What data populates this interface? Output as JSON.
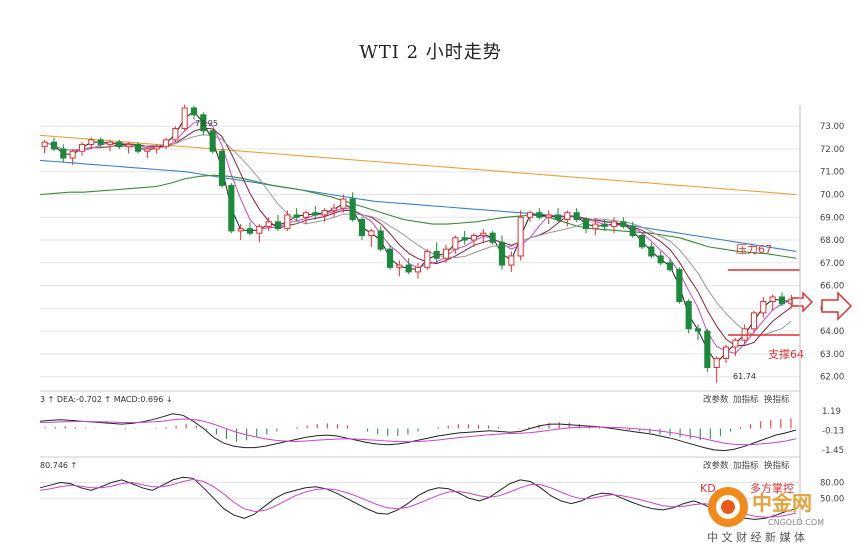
{
  "chart_data": {
    "type": "candlestick",
    "title": "WTI 2 小时走势",
    "y_ticks": [
      73.0,
      72.0,
      71.0,
      70.0,
      69.0,
      68.0,
      67.0,
      66.0,
      65.0,
      64.0,
      63.0,
      62.0
    ],
    "y_ticks_text": [
      "73.00",
      "72.00",
      "71.00",
      "70.00",
      "69.00",
      "68.00",
      "67.00",
      "66.00",
      "65.00",
      "64.00",
      "63.00",
      "62.00"
    ],
    "ylim": [
      61.5,
      73.8
    ],
    "high_marker": "73.95",
    "low_marker": "61.74",
    "candles": [
      [
        72.1,
        72.4,
        71.8,
        72.3
      ],
      [
        72.3,
        72.5,
        71.9,
        72.0
      ],
      [
        72.0,
        72.2,
        71.4,
        71.6
      ],
      [
        71.6,
        72.0,
        71.3,
        71.9
      ],
      [
        71.9,
        72.3,
        71.7,
        72.2
      ],
      [
        72.2,
        72.5,
        72.0,
        72.4
      ],
      [
        72.4,
        72.5,
        72.1,
        72.2
      ],
      [
        72.2,
        72.4,
        71.9,
        72.3
      ],
      [
        72.3,
        72.4,
        72.0,
        72.1
      ],
      [
        72.1,
        72.3,
        71.8,
        72.2
      ],
      [
        72.2,
        72.3,
        71.8,
        71.9
      ],
      [
        71.9,
        72.1,
        71.6,
        72.0
      ],
      [
        72.0,
        72.2,
        71.8,
        72.1
      ],
      [
        72.1,
        72.5,
        72.0,
        72.4
      ],
      [
        72.4,
        73.0,
        72.3,
        72.9
      ],
      [
        72.9,
        73.95,
        72.8,
        73.8
      ],
      [
        73.8,
        73.9,
        73.3,
        73.5
      ],
      [
        73.5,
        73.6,
        72.6,
        72.8
      ],
      [
        72.8,
        72.9,
        71.8,
        71.9
      ],
      [
        71.9,
        72.0,
        70.3,
        70.4
      ],
      [
        70.4,
        70.5,
        68.3,
        68.4
      ],
      [
        68.4,
        68.7,
        68.0,
        68.5
      ],
      [
        68.5,
        68.8,
        68.2,
        68.3
      ],
      [
        68.3,
        68.7,
        67.9,
        68.6
      ],
      [
        68.6,
        69.0,
        68.4,
        68.8
      ],
      [
        68.8,
        69.1,
        68.4,
        68.5
      ],
      [
        68.5,
        69.3,
        68.4,
        69.1
      ],
      [
        69.1,
        69.4,
        68.8,
        69.0
      ],
      [
        69.0,
        69.3,
        68.7,
        69.2
      ],
      [
        69.2,
        69.5,
        68.9,
        69.1
      ],
      [
        69.1,
        69.4,
        68.8,
        69.3
      ],
      [
        69.3,
        69.6,
        69.0,
        69.4
      ],
      [
        69.4,
        70.0,
        69.2,
        69.8
      ],
      [
        69.8,
        70.1,
        68.8,
        68.9
      ],
      [
        68.9,
        69.0,
        68.0,
        68.2
      ],
      [
        68.2,
        68.5,
        67.7,
        68.4
      ],
      [
        68.4,
        68.6,
        67.5,
        67.6
      ],
      [
        67.6,
        67.8,
        66.7,
        66.8
      ],
      [
        66.8,
        67.1,
        66.4,
        66.9
      ],
      [
        66.9,
        67.2,
        66.5,
        66.6
      ],
      [
        66.6,
        67.0,
        66.3,
        66.8
      ],
      [
        66.8,
        67.6,
        66.7,
        67.5
      ],
      [
        67.5,
        67.9,
        67.0,
        67.2
      ],
      [
        67.2,
        67.8,
        67.0,
        67.6
      ],
      [
        67.6,
        68.2,
        67.4,
        68.1
      ],
      [
        68.1,
        68.4,
        67.8,
        68.0
      ],
      [
        68.0,
        68.3,
        67.7,
        68.2
      ],
      [
        68.2,
        68.5,
        67.9,
        68.3
      ],
      [
        68.3,
        68.4,
        67.8,
        67.9
      ],
      [
        67.9,
        68.2,
        66.7,
        66.9
      ],
      [
        66.9,
        67.5,
        66.6,
        67.3
      ],
      [
        67.3,
        69.3,
        67.1,
        69.0
      ],
      [
        69.0,
        69.3,
        68.8,
        69.2
      ],
      [
        69.2,
        69.4,
        68.9,
        69.0
      ],
      [
        69.0,
        69.3,
        68.7,
        69.1
      ],
      [
        69.1,
        69.4,
        68.8,
        68.9
      ],
      [
        68.9,
        69.3,
        68.6,
        69.2
      ],
      [
        69.2,
        69.4,
        68.8,
        68.9
      ],
      [
        68.9,
        69.0,
        68.3,
        68.5
      ],
      [
        68.5,
        68.9,
        68.2,
        68.7
      ],
      [
        68.7,
        68.9,
        68.4,
        68.6
      ],
      [
        68.6,
        69.0,
        68.3,
        68.8
      ],
      [
        68.8,
        69.0,
        68.5,
        68.6
      ],
      [
        68.6,
        68.8,
        68.1,
        68.2
      ],
      [
        68.2,
        68.3,
        67.6,
        67.7
      ],
      [
        67.7,
        67.9,
        67.2,
        67.3
      ],
      [
        67.3,
        67.5,
        66.9,
        67.0
      ],
      [
        67.0,
        67.2,
        66.6,
        66.7
      ],
      [
        66.7,
        66.8,
        65.2,
        65.3
      ],
      [
        65.3,
        65.4,
        63.9,
        64.1
      ],
      [
        64.1,
        64.3,
        63.6,
        64.0
      ],
      [
        64.0,
        64.1,
        62.2,
        62.4
      ],
      [
        62.4,
        62.9,
        61.74,
        62.8
      ],
      [
        62.8,
        63.4,
        62.6,
        63.3
      ],
      [
        63.3,
        63.7,
        62.9,
        63.6
      ],
      [
        63.6,
        64.3,
        63.4,
        64.1
      ],
      [
        64.1,
        64.9,
        63.9,
        64.8
      ],
      [
        64.8,
        65.5,
        64.6,
        65.3
      ],
      [
        65.3,
        65.6,
        64.9,
        65.5
      ],
      [
        65.5,
        65.7,
        65.1,
        65.2
      ],
      [
        65.2,
        65.6,
        65.0,
        65.4
      ]
    ],
    "ma_lines": [
      {
        "color": "#e8a33a",
        "values": [
          72.6,
          72.55,
          72.5,
          72.45,
          72.4,
          72.35,
          72.3,
          72.25,
          72.2,
          72.15,
          72.1,
          72.05,
          72.0,
          71.95,
          71.9,
          71.85,
          71.8,
          71.75,
          71.7,
          71.65,
          71.6,
          71.55,
          71.5,
          71.45,
          71.4,
          71.35,
          71.3,
          71.25,
          71.2,
          71.15,
          71.1,
          71.05,
          71.0,
          70.95,
          70.9,
          70.85,
          70.8,
          70.75,
          70.7,
          70.65,
          70.6,
          70.55,
          70.5,
          70.45,
          70.4,
          70.35,
          70.3,
          70.25,
          70.2,
          70.15,
          70.1,
          70.05,
          70.0
        ]
      },
      {
        "color": "#3c82c8",
        "values": [
          71.5,
          71.45,
          71.4,
          71.35,
          71.3,
          71.25,
          71.2,
          71.15,
          71.1,
          71.05,
          71.0,
          70.9,
          70.8,
          70.7,
          70.6,
          70.5,
          70.4,
          70.3,
          70.2,
          70.1,
          70.0,
          69.9,
          69.8,
          69.7,
          69.65,
          69.6,
          69.55,
          69.5,
          69.45,
          69.4,
          69.35,
          69.3,
          69.25,
          69.2,
          69.15,
          69.1,
          69.05,
          69.0,
          68.9,
          68.8,
          68.7,
          68.6,
          68.5,
          68.4,
          68.3,
          68.2,
          68.1,
          68.0,
          67.9,
          67.8,
          67.7,
          67.6,
          67.5
        ]
      },
      {
        "color": "#3a8a3a",
        "values": [
          70.0,
          70.05,
          70.1,
          70.1,
          70.15,
          70.2,
          70.25,
          70.3,
          70.35,
          70.5,
          70.7,
          70.8,
          70.85,
          70.8,
          70.7,
          70.55,
          70.4,
          70.3,
          70.2,
          70.05,
          69.9,
          69.7,
          69.5,
          69.3,
          69.1,
          68.9,
          68.8,
          68.7,
          68.7,
          68.75,
          68.8,
          68.9,
          69.0,
          69.05,
          69.1,
          69.0,
          68.8,
          68.6,
          68.5,
          68.45,
          68.4,
          68.35,
          68.3,
          68.2,
          68.1,
          67.9,
          67.7,
          67.6,
          67.5,
          67.45,
          67.4,
          67.3,
          67.2
        ]
      }
    ],
    "annotations": {
      "resistance_label": "压力67",
      "resistance_value": 66.9,
      "support_label": "支撑64",
      "support_value": 63.9
    },
    "macd_panel": {
      "header": "3 ↑ DEA:-0.702 ↑ MACD:0.696 ↓",
      "header_dea": "DEA:-0.702",
      "header_macd": "MACD:0.696",
      "y_ticks_text": [
        "1.19",
        "-0.13",
        "-1.45"
      ],
      "y_ticks": [
        1.19,
        -0.13,
        -1.45
      ],
      "ylim": [
        -1.8,
        1.6
      ],
      "histogram": [
        0.1,
        0.12,
        0.15,
        0.1,
        0.05,
        0.02,
        0.0,
        -0.02,
        -0.05,
        -0.03,
        0.02,
        0.05,
        0.1,
        0.2,
        0.3,
        0.2,
        -0.1,
        -0.4,
        -0.7,
        -0.9,
        -0.8,
        -0.6,
        -0.4,
        -0.2,
        0.0,
        0.1,
        0.2,
        0.3,
        0.35,
        0.3,
        0.2,
        0.0,
        -0.2,
        -0.4,
        -0.5,
        -0.5,
        -0.4,
        -0.2,
        0.0,
        0.1,
        0.2,
        0.3,
        0.3,
        0.25,
        0.2,
        0.1,
        0.0,
        -0.05,
        0.1,
        0.25,
        0.4,
        0.45,
        0.4,
        0.3,
        0.2,
        0.15,
        0.1,
        0.0,
        -0.1,
        -0.2,
        -0.3,
        -0.4,
        -0.5,
        -0.6,
        -0.7,
        -0.8,
        -0.7,
        -0.5,
        -0.2,
        0.1,
        0.3,
        0.5,
        0.6,
        0.65,
        0.7
      ],
      "dif": [
        0.5,
        0.55,
        0.6,
        0.55,
        0.5,
        0.45,
        0.4,
        0.35,
        0.3,
        0.35,
        0.45,
        0.6,
        0.8,
        1.0,
        0.9,
        0.5,
        0.0,
        -0.6,
        -1.0,
        -1.2,
        -1.3,
        -1.3,
        -1.2,
        -1.05,
        -0.9,
        -0.75,
        -0.6,
        -0.5,
        -0.45,
        -0.5,
        -0.65,
        -0.8,
        -0.95,
        -1.05,
        -1.1,
        -1.05,
        -0.95,
        -0.8,
        -0.65,
        -0.5,
        -0.4,
        -0.3,
        -0.25,
        -0.2,
        -0.15,
        -0.2,
        -0.25,
        -0.2,
        0.0,
        0.2,
        0.3,
        0.3,
        0.25,
        0.2,
        0.15,
        0.1,
        0.0,
        -0.1,
        -0.2,
        -0.3,
        -0.4,
        -0.55,
        -0.7,
        -0.9,
        -1.1,
        -1.3,
        -1.45,
        -1.5,
        -1.4,
        -1.2,
        -0.95,
        -0.7,
        -0.45,
        -0.3,
        -0.1
      ],
      "dea": [
        0.4,
        0.42,
        0.45,
        0.47,
        0.48,
        0.47,
        0.46,
        0.44,
        0.42,
        0.41,
        0.42,
        0.45,
        0.5,
        0.6,
        0.65,
        0.62,
        0.5,
        0.3,
        0.05,
        -0.2,
        -0.4,
        -0.55,
        -0.7,
        -0.8,
        -0.85,
        -0.88,
        -0.85,
        -0.8,
        -0.75,
        -0.72,
        -0.7,
        -0.72,
        -0.76,
        -0.8,
        -0.85,
        -0.88,
        -0.89,
        -0.88,
        -0.84,
        -0.78,
        -0.7,
        -0.62,
        -0.55,
        -0.48,
        -0.42,
        -0.37,
        -0.34,
        -0.32,
        -0.28,
        -0.2,
        -0.1,
        -0.02,
        0.05,
        0.08,
        0.1,
        0.1,
        0.08,
        0.05,
        0.0,
        -0.05,
        -0.12,
        -0.2,
        -0.3,
        -0.42,
        -0.55,
        -0.7,
        -0.85,
        -1.0,
        -1.08,
        -1.1,
        -1.08,
        -1.02,
        -0.95,
        -0.85,
        -0.7
      ]
    },
    "kdj_panel": {
      "header": "80.746 ↑",
      "y_ticks_text": [
        "80.00",
        "50.00"
      ],
      "y_ticks": [
        80,
        50
      ],
      "ylim": [
        5,
        100
      ],
      "k": [
        70,
        75,
        80,
        78,
        70,
        65,
        72,
        80,
        85,
        78,
        70,
        65,
        75,
        85,
        90,
        88,
        70,
        50,
        30,
        18,
        12,
        20,
        35,
        50,
        60,
        65,
        70,
        72,
        68,
        60,
        50,
        40,
        30,
        22,
        20,
        28,
        40,
        55,
        65,
        70,
        68,
        60,
        50,
        45,
        52,
        65,
        78,
        85,
        82,
        70,
        55,
        45,
        40,
        45,
        55,
        60,
        58,
        50,
        42,
        35,
        30,
        28,
        32,
        40,
        45,
        38,
        28,
        20,
        15,
        12,
        10,
        12,
        18,
        25,
        30
      ],
      "d": [
        65,
        68,
        72,
        75,
        73,
        70,
        70,
        73,
        78,
        80,
        76,
        72,
        72,
        76,
        82,
        86,
        82,
        72,
        58,
        42,
        30,
        25,
        27,
        35,
        45,
        55,
        62,
        67,
        68,
        66,
        61,
        54,
        46,
        38,
        32,
        30,
        33,
        40,
        48,
        56,
        62,
        63,
        60,
        55,
        52,
        55,
        62,
        70,
        76,
        76,
        70,
        62,
        54,
        49,
        50,
        54,
        57,
        55,
        51,
        46,
        41,
        36,
        34,
        35,
        38,
        40,
        37,
        31,
        25,
        20,
        16,
        14,
        15,
        18,
        22
      ]
    },
    "panel_buttons": [
      "改参数",
      "加指标",
      "换指标"
    ]
  },
  "ui": {
    "watermark_cn": "中金网",
    "watermark_url": "CNGOLD.COM",
    "watermark_sub": "中 文 财 经 新 媒 体",
    "kdj_overlay_text": "KD",
    "kdj_overlay_text2": "多方掌控"
  },
  "colors": {
    "up": "#e03030",
    "down": "#1a8a3a",
    "grid": "#e6e6e6",
    "kline_pink": "#cc44cc",
    "kline_darkred": "#8a2040",
    "kline_black": "#222222",
    "kline_gray": "#999999"
  }
}
